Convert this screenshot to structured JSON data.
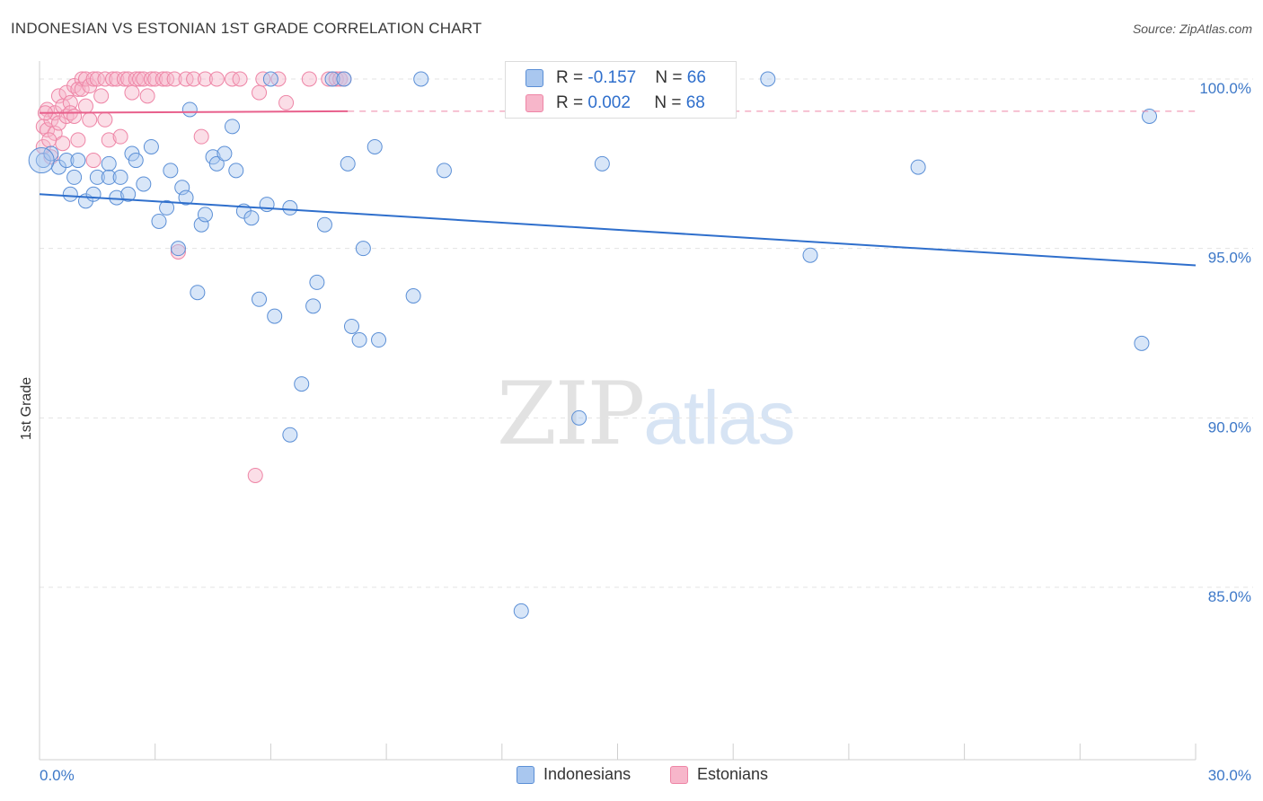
{
  "title": "INDONESIAN VS ESTONIAN 1ST GRADE CORRELATION CHART",
  "source": "Source: ZipAtlas.com",
  "watermark": {
    "zip": "ZIP",
    "atlas": "atlas"
  },
  "colors": {
    "blue_fill": "#a9c7ef",
    "blue_stroke": "#5b8fd6",
    "blue_line": "#2f6fcc",
    "pink_fill": "#f7b6ca",
    "pink_stroke": "#ee85a6",
    "pink_line": "#e8608c",
    "tick_text": "#3d78c8"
  },
  "legend_top": [
    {
      "r_label": "R = ",
      "r_value": "-0.157",
      "n_label": "N = ",
      "n_value": "66",
      "color": "#a9c7ef"
    },
    {
      "r_label": "R = ",
      "r_value": "0.002",
      "n_label": "N = ",
      "n_value": "68",
      "color": "#f7b6ca"
    }
  ],
  "legend_bottom": [
    {
      "label": "Indonesians",
      "color": "#a9c7ef"
    },
    {
      "label": "Estonians",
      "color": "#f7b6ca"
    }
  ],
  "chart_data": {
    "type": "scatter",
    "title": "INDONESIAN VS ESTONIAN 1ST GRADE CORRELATION CHART",
    "xlabel": "",
    "ylabel": "1st Grade",
    "xlim": [
      0,
      30
    ],
    "ylim": [
      80.5,
      100.8
    ],
    "x_tick_labels": [
      "0.0%",
      "30.0%"
    ],
    "y_ticks": [
      85,
      90,
      95,
      100
    ],
    "y_tick_labels": [
      "85.0%",
      "90.0%",
      "95.0%",
      "100.0%"
    ],
    "grid": true,
    "legend_position": "top-center",
    "series": [
      {
        "name": "Indonesians",
        "trend": {
          "x": [
            0,
            30
          ],
          "y": [
            96.6,
            94.5
          ]
        },
        "points": [
          [
            0.1,
            97.6
          ],
          [
            0.3,
            97.8
          ],
          [
            0.5,
            97.4
          ],
          [
            0.7,
            97.6
          ],
          [
            0.8,
            96.6
          ],
          [
            0.9,
            97.1
          ],
          [
            1.0,
            97.6
          ],
          [
            1.2,
            96.4
          ],
          [
            1.4,
            96.6
          ],
          [
            1.5,
            97.1
          ],
          [
            1.8,
            97.5
          ],
          [
            1.8,
            97.1
          ],
          [
            2.0,
            96.5
          ],
          [
            2.1,
            97.1
          ],
          [
            2.3,
            96.6
          ],
          [
            2.4,
            97.8
          ],
          [
            2.5,
            97.6
          ],
          [
            2.7,
            96.9
          ],
          [
            2.9,
            98.0
          ],
          [
            3.1,
            95.8
          ],
          [
            3.3,
            96.2
          ],
          [
            3.4,
            97.3
          ],
          [
            3.6,
            95.0
          ],
          [
            3.7,
            96.8
          ],
          [
            3.8,
            96.5
          ],
          [
            3.9,
            99.1
          ],
          [
            4.1,
            93.7
          ],
          [
            4.2,
            95.7
          ],
          [
            4.3,
            96.0
          ],
          [
            4.5,
            97.7
          ],
          [
            4.6,
            97.5
          ],
          [
            4.8,
            97.8
          ],
          [
            5.0,
            98.6
          ],
          [
            5.1,
            97.3
          ],
          [
            5.3,
            96.1
          ],
          [
            5.5,
            95.9
          ],
          [
            5.7,
            93.5
          ],
          [
            5.9,
            96.3
          ],
          [
            6.0,
            100.0
          ],
          [
            6.1,
            93.0
          ],
          [
            6.5,
            89.5
          ],
          [
            6.5,
            96.2
          ],
          [
            6.8,
            91.0
          ],
          [
            7.1,
            93.3
          ],
          [
            7.2,
            94.0
          ],
          [
            7.4,
            95.7
          ],
          [
            7.6,
            100.0
          ],
          [
            7.9,
            100.0
          ],
          [
            8.0,
            97.5
          ],
          [
            8.1,
            92.7
          ],
          [
            8.3,
            92.3
          ],
          [
            8.4,
            95.0
          ],
          [
            8.7,
            98.0
          ],
          [
            8.8,
            92.3
          ],
          [
            9.7,
            93.6
          ],
          [
            9.9,
            100.0
          ],
          [
            10.5,
            97.3
          ],
          [
            12.5,
            84.3
          ],
          [
            14.0,
            90.0
          ],
          [
            14.6,
            97.5
          ],
          [
            18.9,
            100.0
          ],
          [
            20.0,
            94.8
          ],
          [
            22.8,
            97.4
          ],
          [
            28.6,
            92.2
          ],
          [
            28.8,
            98.9
          ],
          [
            0.05,
            97.6
          ]
        ]
      },
      {
        "name": "Estonians",
        "trend": {
          "x": [
            0,
            8
          ],
          "y": [
            99.0,
            99.05
          ]
        },
        "points": [
          [
            0.1,
            98.6
          ],
          [
            0.2,
            99.1
          ],
          [
            0.2,
            98.5
          ],
          [
            0.3,
            98.8
          ],
          [
            0.3,
            97.7
          ],
          [
            0.4,
            99.0
          ],
          [
            0.4,
            98.4
          ],
          [
            0.5,
            99.5
          ],
          [
            0.5,
            98.7
          ],
          [
            0.6,
            99.2
          ],
          [
            0.6,
            98.1
          ],
          [
            0.7,
            99.6
          ],
          [
            0.7,
            98.9
          ],
          [
            0.8,
            99.3
          ],
          [
            0.8,
            99.0
          ],
          [
            0.9,
            99.8
          ],
          [
            0.9,
            98.9
          ],
          [
            1.0,
            99.7
          ],
          [
            1.0,
            98.2
          ],
          [
            1.1,
            100.0
          ],
          [
            1.1,
            99.7
          ],
          [
            1.2,
            100.0
          ],
          [
            1.2,
            99.2
          ],
          [
            1.3,
            99.8
          ],
          [
            1.3,
            98.8
          ],
          [
            1.4,
            100.0
          ],
          [
            1.4,
            97.6
          ],
          [
            1.5,
            100.0
          ],
          [
            1.6,
            99.5
          ],
          [
            1.7,
            100.0
          ],
          [
            1.7,
            98.8
          ],
          [
            1.8,
            98.2
          ],
          [
            1.9,
            100.0
          ],
          [
            2.0,
            100.0
          ],
          [
            2.1,
            98.3
          ],
          [
            2.2,
            100.0
          ],
          [
            2.3,
            100.0
          ],
          [
            2.4,
            99.6
          ],
          [
            2.5,
            100.0
          ],
          [
            2.6,
            100.0
          ],
          [
            2.7,
            100.0
          ],
          [
            2.8,
            99.5
          ],
          [
            2.9,
            100.0
          ],
          [
            3.0,
            100.0
          ],
          [
            3.2,
            100.0
          ],
          [
            3.3,
            100.0
          ],
          [
            3.5,
            100.0
          ],
          [
            3.6,
            94.9
          ],
          [
            3.8,
            100.0
          ],
          [
            4.0,
            100.0
          ],
          [
            4.2,
            98.3
          ],
          [
            4.3,
            100.0
          ],
          [
            4.6,
            100.0
          ],
          [
            5.0,
            100.0
          ],
          [
            5.2,
            100.0
          ],
          [
            5.6,
            88.3
          ],
          [
            5.7,
            99.6
          ],
          [
            5.8,
            100.0
          ],
          [
            6.2,
            100.0
          ],
          [
            6.4,
            99.3
          ],
          [
            7.0,
            100.0
          ],
          [
            7.5,
            100.0
          ],
          [
            7.7,
            100.0
          ],
          [
            7.8,
            100.0
          ],
          [
            7.9,
            100.0
          ],
          [
            0.1,
            98.0
          ],
          [
            0.15,
            99.0
          ],
          [
            0.25,
            98.2
          ]
        ]
      }
    ]
  }
}
